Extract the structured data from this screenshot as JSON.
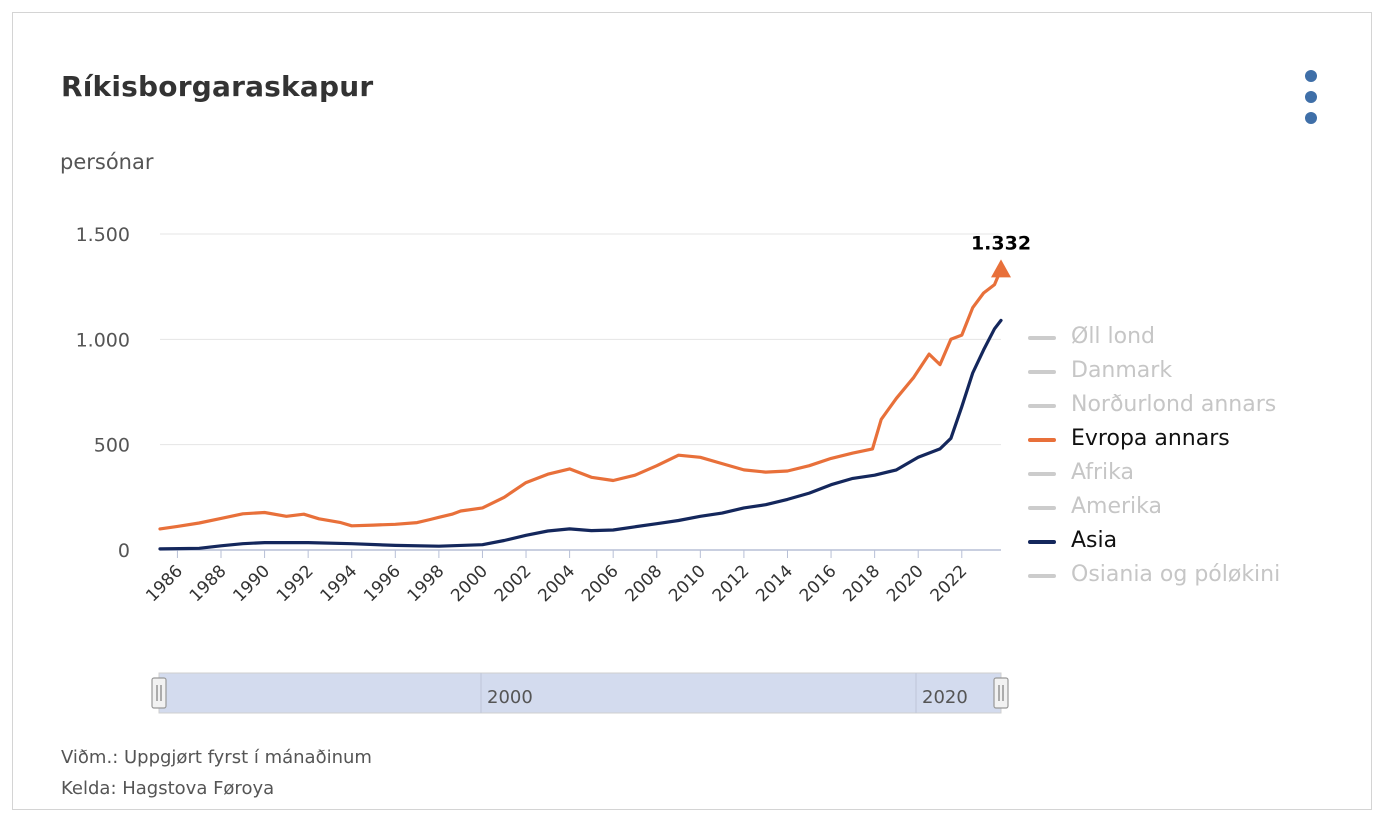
{
  "card": {
    "title": "Ríkisborgaraskapur",
    "menu_icon": "three-dots-vertical-icon",
    "footnote_note": "Viðm.: Uppgjørt fyrst í mánaðinum",
    "footnote_source": "Kelda: Hagstova Føroya"
  },
  "chart_data": {
    "type": "line",
    "ylabel": "persónar",
    "ylim": [
      0,
      1500
    ],
    "yticks": [
      0,
      500,
      1000,
      1500
    ],
    "ytick_labels": [
      "0",
      "500",
      "1.000",
      "1.500"
    ],
    "xlim": [
      1985.2,
      2023.8
    ],
    "xticks": [
      "1986",
      "1988",
      "1990",
      "1992",
      "1994",
      "1996",
      "1998",
      "2000",
      "2002",
      "2004",
      "2006",
      "2008",
      "2010",
      "2012",
      "2014",
      "2016",
      "2018",
      "2020",
      "2022"
    ],
    "grid": "horizontal",
    "legend_position": "right",
    "legend": [
      {
        "name": "Øll lond",
        "active": false,
        "color": "#cccccc"
      },
      {
        "name": "Danmark",
        "active": false,
        "color": "#cccccc"
      },
      {
        "name": "Norðurlond annars",
        "active": false,
        "color": "#cccccc"
      },
      {
        "name": "Evropa annars",
        "active": true,
        "color": "#e8703a"
      },
      {
        "name": "Afrika",
        "active": false,
        "color": "#cccccc"
      },
      {
        "name": "Amerika",
        "active": false,
        "color": "#cccccc"
      },
      {
        "name": "Asia",
        "active": true,
        "color": "#14275c"
      },
      {
        "name": "Osiania og póløkini",
        "active": false,
        "color": "#cccccc"
      }
    ],
    "series": [
      {
        "name": "Evropa annars",
        "color": "#e8703a",
        "x": [
          1985.2,
          1986,
          1987,
          1988,
          1989,
          1990,
          1991,
          1991.8,
          1992.5,
          1993.5,
          1994,
          1995,
          1996,
          1997,
          1997.6,
          1998,
          1998.6,
          1999,
          2000,
          2001,
          2002,
          2003,
          2004,
          2005,
          2006,
          2007,
          2008,
          2009,
          2010,
          2011,
          2012,
          2013,
          2014,
          2015,
          2016,
          2017,
          2017.9,
          2018.3,
          2019,
          2019.8,
          2020.5,
          2021,
          2021.5,
          2022,
          2022.5,
          2023,
          2023.5,
          2023.8
        ],
        "y": [
          100,
          112,
          128,
          150,
          172,
          178,
          160,
          170,
          148,
          130,
          115,
          118,
          122,
          130,
          145,
          155,
          170,
          185,
          200,
          250,
          320,
          360,
          385,
          345,
          330,
          355,
          400,
          450,
          440,
          410,
          380,
          370,
          375,
          400,
          435,
          460,
          480,
          620,
          720,
          820,
          930,
          880,
          1000,
          1020,
          1150,
          1220,
          1260,
          1332
        ]
      },
      {
        "name": "Asia",
        "color": "#14275c",
        "x": [
          1985.2,
          1987,
          1988,
          1989,
          1990,
          1992,
          1994,
          1996,
          1998,
          2000,
          2001,
          2002,
          2003,
          2004,
          2005,
          2006,
          2007,
          2008,
          2009,
          2010,
          2011,
          2012,
          2013,
          2014,
          2015,
          2016,
          2017,
          2018,
          2019,
          2020,
          2021,
          2021.5,
          2022,
          2022.5,
          2023,
          2023.5,
          2023.8
        ],
        "y": [
          5,
          8,
          20,
          30,
          35,
          35,
          30,
          22,
          18,
          25,
          45,
          70,
          90,
          100,
          92,
          95,
          110,
          125,
          140,
          160,
          175,
          200,
          215,
          240,
          270,
          310,
          340,
          355,
          380,
          440,
          480,
          530,
          680,
          840,
          950,
          1050,
          1090
        ]
      }
    ],
    "end_marker": {
      "series": "Evropa annars",
      "x": 2023.8,
      "y": 1332,
      "label": "1.332",
      "icon": "triangle-up-icon"
    },
    "navigator": {
      "labels": [
        "2000",
        "2020"
      ],
      "handle_icon": "grip-handle-icon"
    }
  }
}
